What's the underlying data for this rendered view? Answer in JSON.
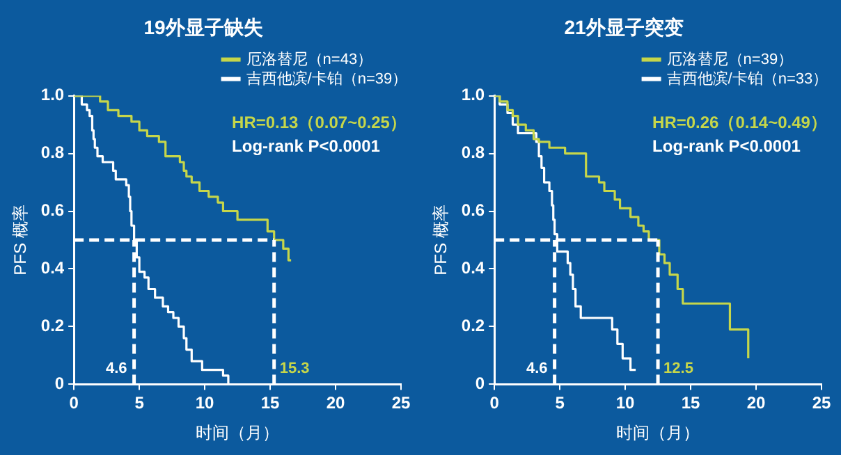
{
  "chart_data": [
    {
      "type": "step",
      "title": "19外显子缺失",
      "xlabel": "时间（月）",
      "ylabel": "PFS 概率",
      "xlim": [
        0,
        25
      ],
      "xticks": [
        0,
        5,
        10,
        15,
        20,
        25
      ],
      "ylim": [
        0,
        1
      ],
      "yticks": [
        0,
        0.2,
        0.4,
        0.6,
        0.8,
        {
          "value": 1,
          "label": "1.0"
        }
      ],
      "grid": false,
      "legend": "top right",
      "marker": "none",
      "series": [
        {
          "name": "厄洛替尼（n=43）",
          "color": "#c6d64a",
          "x": [
            0,
            2.0,
            2.6,
            3.4,
            4.4,
            5.0,
            5.6,
            6.5,
            7.0,
            8.1,
            8.4,
            8.6,
            9.0,
            9.6,
            10.3,
            11.0,
            11.4,
            12.5,
            14.8,
            15.3,
            16.0,
            16.4,
            16.6
          ],
          "values": [
            1,
            0.98,
            0.95,
            0.93,
            0.91,
            0.88,
            0.86,
            0.84,
            0.79,
            0.77,
            0.74,
            0.72,
            0.7,
            0.67,
            0.65,
            0.63,
            0.6,
            0.57,
            0.53,
            0.5,
            0.47,
            0.43,
            0.43
          ]
        },
        {
          "name": "吉西他滨/卡铂（n=39）",
          "color": "#ffffff",
          "x": [
            0,
            0.6,
            1.0,
            1.2,
            1.4,
            1.5,
            1.6,
            1.8,
            2.2,
            3.0,
            3.2,
            4.0,
            4.2,
            4.3,
            4.4,
            4.6,
            4.8,
            5.0,
            5.4,
            5.7,
            6.2,
            6.8,
            7.2,
            7.6,
            8.0,
            8.4,
            8.6,
            9.0,
            9.8,
            11.4,
            11.8
          ],
          "values": [
            1,
            0.97,
            0.95,
            0.93,
            0.88,
            0.85,
            0.82,
            0.79,
            0.77,
            0.74,
            0.71,
            0.69,
            0.65,
            0.6,
            0.55,
            0.5,
            0.44,
            0.39,
            0.37,
            0.33,
            0.3,
            0.27,
            0.25,
            0.23,
            0.2,
            0.16,
            0.12,
            0.08,
            0.05,
            0.03,
            0
          ]
        }
      ],
      "ref_lines": [
        {
          "axis": "y",
          "value": 0.5
        },
        {
          "axis": "x",
          "value": 4.6,
          "label": "4.6"
        },
        {
          "axis": "x",
          "value": 15.3,
          "label": "15.3"
        }
      ],
      "annotations": [
        "HR=0.13（0.07~0.25）",
        "Log-rank P<0.0001"
      ]
    },
    {
      "type": "step",
      "title": "21外显子突变",
      "xlabel": "时间（月）",
      "ylabel": "PFS 概率",
      "xlim": [
        0,
        25
      ],
      "xticks": [
        0,
        5,
        10,
        15,
        20,
        25
      ],
      "ylim": [
        0,
        1
      ],
      "yticks": [
        0,
        0.2,
        0.4,
        0.6,
        0.8,
        {
          "value": 1,
          "label": "1.0"
        }
      ],
      "grid": false,
      "legend": "top right",
      "marker": "none",
      "series": [
        {
          "name": "厄洛替尼（n=39）",
          "color": "#c6d64a",
          "x": [
            0,
            0.4,
            1.0,
            1.4,
            1.8,
            2.4,
            3.0,
            3.4,
            4.2,
            5.4,
            7.0,
            8.0,
            8.4,
            9.2,
            9.6,
            10.4,
            11.0,
            11.4,
            11.8,
            12.6,
            13.0,
            13.4,
            14.0,
            14.4,
            18.0,
            19.4
          ],
          "values": [
            1,
            0.98,
            0.95,
            0.93,
            0.9,
            0.88,
            0.85,
            0.84,
            0.82,
            0.8,
            0.72,
            0.7,
            0.67,
            0.64,
            0.61,
            0.58,
            0.55,
            0.53,
            0.5,
            0.45,
            0.42,
            0.38,
            0.33,
            0.28,
            0.19,
            0.09
          ]
        },
        {
          "name": "吉西他滨/卡铂（n=33）",
          "color": "#ffffff",
          "x": [
            0,
            0.4,
            1.0,
            1.4,
            1.8,
            3.2,
            3.4,
            3.6,
            3.8,
            4.2,
            4.4,
            4.5,
            4.6,
            4.8,
            5.6,
            5.8,
            6.0,
            6.2,
            6.6,
            9.0,
            9.4,
            9.8,
            10.4,
            10.8
          ],
          "values": [
            1,
            0.97,
            0.94,
            0.9,
            0.87,
            0.84,
            0.79,
            0.75,
            0.7,
            0.67,
            0.62,
            0.57,
            0.52,
            0.46,
            0.42,
            0.38,
            0.33,
            0.27,
            0.23,
            0.19,
            0.14,
            0.09,
            0.05,
            0.05
          ]
        }
      ],
      "ref_lines": [
        {
          "axis": "y",
          "value": 0.5
        },
        {
          "axis": "x",
          "value": 4.6,
          "label": "4.6"
        },
        {
          "axis": "x",
          "value": 12.5,
          "label": "12.5"
        }
      ],
      "annotations": [
        "HR=0.26（0.14~0.49）",
        "Log-rank P<0.0001"
      ]
    }
  ]
}
